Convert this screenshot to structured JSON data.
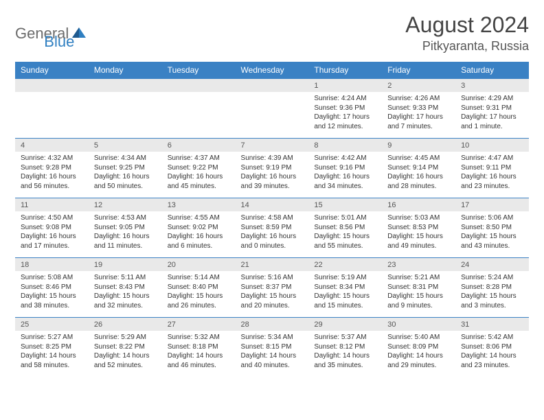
{
  "logo": {
    "word1": "General",
    "word2": "Blue",
    "icon_color": "#2f7fc1"
  },
  "title": "August 2024",
  "location": "Pitkyaranta, Russia",
  "colors": {
    "header_bg": "#3a81c4",
    "header_text": "#ffffff",
    "daynum_bg": "#e9e9e9",
    "border": "#3a81c4",
    "body_text": "#333333"
  },
  "dow": [
    "Sunday",
    "Monday",
    "Tuesday",
    "Wednesday",
    "Thursday",
    "Friday",
    "Saturday"
  ],
  "weeks": [
    [
      null,
      null,
      null,
      null,
      {
        "n": "1",
        "sr": "4:24 AM",
        "ss": "9:36 PM",
        "dl": "17 hours and 12 minutes."
      },
      {
        "n": "2",
        "sr": "4:26 AM",
        "ss": "9:33 PM",
        "dl": "17 hours and 7 minutes."
      },
      {
        "n": "3",
        "sr": "4:29 AM",
        "ss": "9:31 PM",
        "dl": "17 hours and 1 minute."
      }
    ],
    [
      {
        "n": "4",
        "sr": "4:32 AM",
        "ss": "9:28 PM",
        "dl": "16 hours and 56 minutes."
      },
      {
        "n": "5",
        "sr": "4:34 AM",
        "ss": "9:25 PM",
        "dl": "16 hours and 50 minutes."
      },
      {
        "n": "6",
        "sr": "4:37 AM",
        "ss": "9:22 PM",
        "dl": "16 hours and 45 minutes."
      },
      {
        "n": "7",
        "sr": "4:39 AM",
        "ss": "9:19 PM",
        "dl": "16 hours and 39 minutes."
      },
      {
        "n": "8",
        "sr": "4:42 AM",
        "ss": "9:16 PM",
        "dl": "16 hours and 34 minutes."
      },
      {
        "n": "9",
        "sr": "4:45 AM",
        "ss": "9:14 PM",
        "dl": "16 hours and 28 minutes."
      },
      {
        "n": "10",
        "sr": "4:47 AM",
        "ss": "9:11 PM",
        "dl": "16 hours and 23 minutes."
      }
    ],
    [
      {
        "n": "11",
        "sr": "4:50 AM",
        "ss": "9:08 PM",
        "dl": "16 hours and 17 minutes."
      },
      {
        "n": "12",
        "sr": "4:53 AM",
        "ss": "9:05 PM",
        "dl": "16 hours and 11 minutes."
      },
      {
        "n": "13",
        "sr": "4:55 AM",
        "ss": "9:02 PM",
        "dl": "16 hours and 6 minutes."
      },
      {
        "n": "14",
        "sr": "4:58 AM",
        "ss": "8:59 PM",
        "dl": "16 hours and 0 minutes."
      },
      {
        "n": "15",
        "sr": "5:01 AM",
        "ss": "8:56 PM",
        "dl": "15 hours and 55 minutes."
      },
      {
        "n": "16",
        "sr": "5:03 AM",
        "ss": "8:53 PM",
        "dl": "15 hours and 49 minutes."
      },
      {
        "n": "17",
        "sr": "5:06 AM",
        "ss": "8:50 PM",
        "dl": "15 hours and 43 minutes."
      }
    ],
    [
      {
        "n": "18",
        "sr": "5:08 AM",
        "ss": "8:46 PM",
        "dl": "15 hours and 38 minutes."
      },
      {
        "n": "19",
        "sr": "5:11 AM",
        "ss": "8:43 PM",
        "dl": "15 hours and 32 minutes."
      },
      {
        "n": "20",
        "sr": "5:14 AM",
        "ss": "8:40 PM",
        "dl": "15 hours and 26 minutes."
      },
      {
        "n": "21",
        "sr": "5:16 AM",
        "ss": "8:37 PM",
        "dl": "15 hours and 20 minutes."
      },
      {
        "n": "22",
        "sr": "5:19 AM",
        "ss": "8:34 PM",
        "dl": "15 hours and 15 minutes."
      },
      {
        "n": "23",
        "sr": "5:21 AM",
        "ss": "8:31 PM",
        "dl": "15 hours and 9 minutes."
      },
      {
        "n": "24",
        "sr": "5:24 AM",
        "ss": "8:28 PM",
        "dl": "15 hours and 3 minutes."
      }
    ],
    [
      {
        "n": "25",
        "sr": "5:27 AM",
        "ss": "8:25 PM",
        "dl": "14 hours and 58 minutes."
      },
      {
        "n": "26",
        "sr": "5:29 AM",
        "ss": "8:22 PM",
        "dl": "14 hours and 52 minutes."
      },
      {
        "n": "27",
        "sr": "5:32 AM",
        "ss": "8:18 PM",
        "dl": "14 hours and 46 minutes."
      },
      {
        "n": "28",
        "sr": "5:34 AM",
        "ss": "8:15 PM",
        "dl": "14 hours and 40 minutes."
      },
      {
        "n": "29",
        "sr": "5:37 AM",
        "ss": "8:12 PM",
        "dl": "14 hours and 35 minutes."
      },
      {
        "n": "30",
        "sr": "5:40 AM",
        "ss": "8:09 PM",
        "dl": "14 hours and 29 minutes."
      },
      {
        "n": "31",
        "sr": "5:42 AM",
        "ss": "8:06 PM",
        "dl": "14 hours and 23 minutes."
      }
    ]
  ],
  "labels": {
    "sunrise": "Sunrise: ",
    "sunset": "Sunset: ",
    "daylight": "Daylight: "
  }
}
